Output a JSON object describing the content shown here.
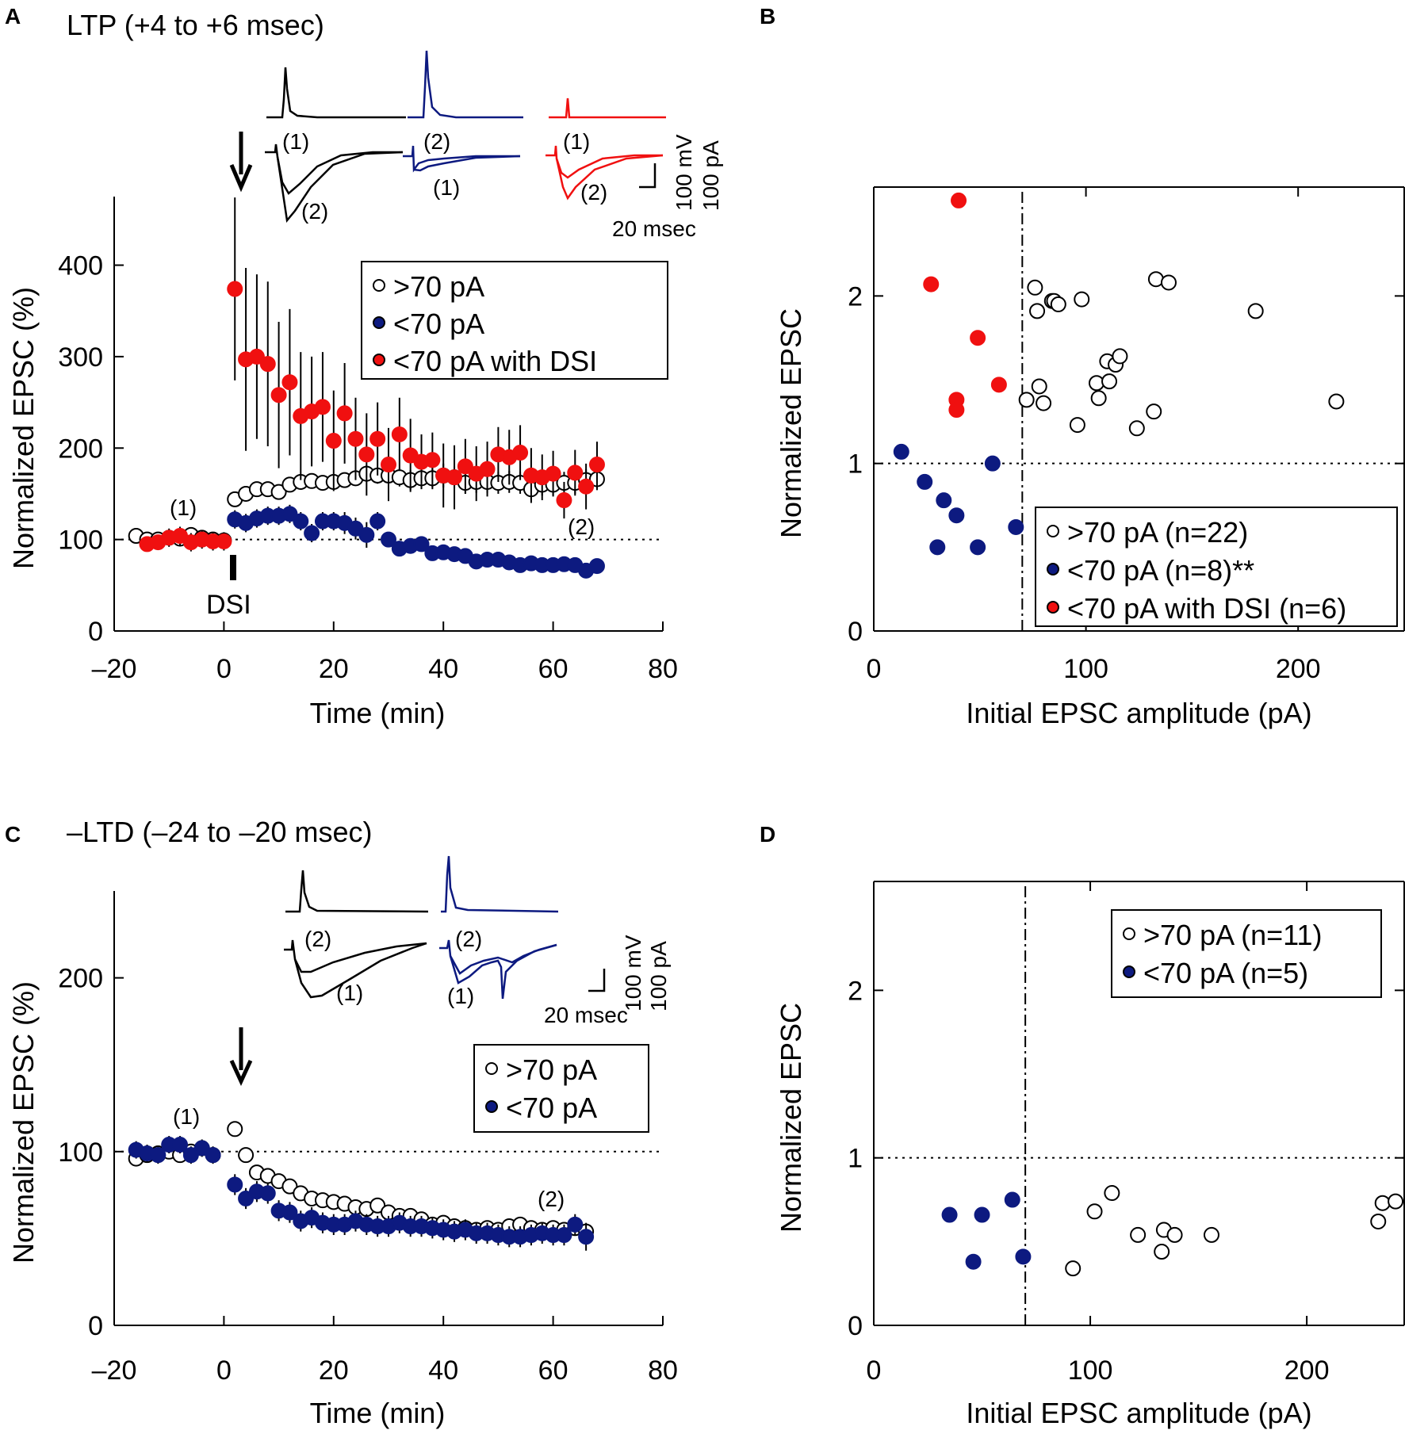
{
  "colors": {
    "black": "#000000",
    "blue": "#0d1a80",
    "red": "#f01010",
    "white": "#ffffff"
  },
  "chart_data": [
    {
      "panel": "A",
      "type": "scatter",
      "title": "LTP (+4 to +6 msec)",
      "xlabel": "Time (min)",
      "ylabel": "Normalized EPSC (%)",
      "xlim": [
        -20,
        80
      ],
      "ylim": [
        0,
        475
      ],
      "xticks": [
        -20,
        0,
        20,
        40,
        60,
        80
      ],
      "xtick_labels": [
        "–20",
        "0",
        "20",
        "40",
        "60",
        "80"
      ],
      "yticks": [
        0,
        100,
        200,
        300,
        400
      ],
      "ytick_labels": [
        "0",
        "100",
        "200",
        "300",
        "400"
      ],
      "reference_line": 100,
      "annotations": {
        "arrow_label": "",
        "pre_label": "(1)",
        "post_label": "(2)",
        "stim_label": "DSI"
      },
      "inset": {
        "scale_mv": "100 mV",
        "scale_pa": "100 pA",
        "scale_time": "20 msec",
        "black_labels": [
          "(1)",
          "(2)"
        ],
        "blue_labels": [
          "(2)",
          "(1)"
        ],
        "red_labels": [
          "(1)",
          "(2)"
        ]
      },
      "legend": ">70 pA|<70 pA|<70 pA with DSI",
      "legend_entries": [
        ">70 pA",
        "<70 pA",
        "<70 pA with DSI"
      ],
      "series": [
        {
          "name": ">70 pA",
          "style": "open",
          "x": [
            -16,
            -14,
            -12,
            -10,
            -8,
            -6,
            -4,
            -2,
            0,
            2,
            4,
            6,
            8,
            10,
            12,
            14,
            16,
            18,
            20,
            22,
            24,
            26,
            28,
            30,
            32,
            34,
            36,
            38,
            40,
            42,
            44,
            46,
            48,
            50,
            52,
            54,
            56,
            58,
            60,
            62,
            64,
            66,
            68
          ],
          "y": [
            104,
            100,
            100,
            102,
            101,
            105,
            102,
            100,
            99,
            144,
            150,
            155,
            155,
            152,
            160,
            163,
            164,
            162,
            163,
            165,
            167,
            172,
            170,
            170,
            168,
            165,
            167,
            167,
            170,
            168,
            162,
            163,
            163,
            162,
            163,
            162,
            155,
            160,
            160,
            162,
            162,
            165,
            166
          ],
          "err": [
            0,
            5,
            5,
            5,
            5,
            4,
            4,
            4,
            4,
            6,
            6,
            6,
            7,
            7,
            7,
            7,
            7,
            7,
            7,
            8,
            8,
            9,
            9,
            10,
            10,
            11,
            11,
            12,
            13,
            12,
            12,
            12,
            12,
            12,
            12,
            12,
            12,
            12,
            12,
            12,
            12,
            12,
            12
          ]
        },
        {
          "name": "<70 pA",
          "style": "blue",
          "x": [
            2,
            4,
            6,
            8,
            10,
            12,
            14,
            16,
            18,
            20,
            22,
            24,
            26,
            28,
            30,
            32,
            34,
            36,
            38,
            40,
            42,
            44,
            46,
            48,
            50,
            52,
            54,
            56,
            58,
            60,
            62,
            64,
            66,
            68
          ],
          "y": [
            122,
            118,
            123,
            126,
            126,
            128,
            120,
            107,
            120,
            120,
            118,
            112,
            105,
            120,
            100,
            90,
            93,
            95,
            85,
            86,
            84,
            82,
            76,
            78,
            78,
            75,
            72,
            74,
            72,
            72,
            73,
            72,
            66,
            71
          ],
          "err": [
            10,
            10,
            10,
            10,
            10,
            10,
            10,
            10,
            10,
            10,
            12,
            12,
            14,
            10,
            8,
            8,
            8,
            8,
            8,
            6,
            6,
            6,
            6,
            6,
            6,
            6,
            5,
            5,
            5,
            5,
            5,
            5,
            5,
            5
          ]
        },
        {
          "name": "<70 pA with DSI",
          "style": "red",
          "x": [
            -14,
            -12,
            -10,
            -8,
            -6,
            -4,
            -2,
            0,
            2,
            4,
            6,
            8,
            10,
            12,
            14,
            16,
            18,
            20,
            22,
            24,
            26,
            28,
            30,
            32,
            34,
            36,
            38,
            40,
            42,
            44,
            46,
            48,
            50,
            52,
            54,
            56,
            58,
            60,
            62,
            64,
            66,
            68
          ],
          "y": [
            95,
            97,
            102,
            104,
            97,
            100,
            98,
            98,
            374,
            297,
            300,
            292,
            258,
            272,
            235,
            240,
            245,
            208,
            238,
            210,
            193,
            210,
            182,
            215,
            192,
            185,
            187,
            170,
            168,
            180,
            172,
            177,
            193,
            190,
            195,
            170,
            168,
            172,
            143,
            173,
            158,
            182
          ],
          "err": [
            8,
            8,
            10,
            10,
            10,
            10,
            10,
            10,
            100,
            100,
            90,
            90,
            80,
            80,
            70,
            60,
            60,
            55,
            55,
            45,
            45,
            40,
            40,
            40,
            40,
            30,
            30,
            35,
            35,
            30,
            30,
            30,
            30,
            30,
            30,
            30,
            25,
            25,
            20,
            25,
            25,
            25
          ]
        }
      ]
    },
    {
      "panel": "B",
      "type": "scatter",
      "xlabel": "Initial EPSC amplitude (pA)",
      "ylabel": "Normalized EPSC",
      "xlim": [
        0,
        250
      ],
      "ylim": [
        0,
        2.65
      ],
      "xticks": [
        0,
        100,
        200
      ],
      "xtick_labels": [
        "0",
        "100",
        "200"
      ],
      "yticks": [
        0,
        1,
        2
      ],
      "ytick_labels": [
        "0",
        "1",
        "2"
      ],
      "threshold_x": 70,
      "reference_line": 1,
      "legend": ">70 pA (n=22)|<70 pA (n=8)**|<70 pA with DSI (n=6)",
      "legend_entries": [
        ">70 pA (n=22)",
        "<70 pA (n=8)**",
        "<70 pA with DSI (n=6)"
      ],
      "series": [
        {
          "name": ">70 pA (n=22)",
          "style": "open",
          "x": [
            72,
            76,
            77,
            78,
            80,
            84,
            85,
            87,
            96,
            98,
            105,
            106,
            110,
            111,
            114,
            116,
            124,
            132,
            133,
            139,
            180,
            218
          ],
          "y": [
            1.38,
            2.05,
            1.91,
            1.46,
            1.36,
            1.97,
            1.97,
            1.95,
            1.23,
            1.98,
            1.48,
            1.39,
            1.61,
            1.49,
            1.59,
            1.64,
            1.21,
            1.31,
            2.1,
            2.08,
            1.91,
            1.37
          ]
        },
        {
          "name": "<70 pA (n=8)**",
          "style": "blue",
          "x": [
            13,
            24,
            30,
            33,
            39,
            49,
            56,
            67
          ],
          "y": [
            1.07,
            0.89,
            0.5,
            0.78,
            0.69,
            0.5,
            1.0,
            0.62
          ]
        },
        {
          "name": "<70 pA with DSI (n=6)",
          "style": "red",
          "x": [
            27,
            39,
            39,
            40,
            49,
            59
          ],
          "y": [
            2.07,
            1.38,
            1.32,
            2.57,
            1.75,
            1.47
          ]
        }
      ]
    },
    {
      "panel": "C",
      "type": "scatter",
      "title": "–LTD (–24 to –20 msec)",
      "xlabel": "Time (min)",
      "ylabel": "Normalized EPSC (%)",
      "xlim": [
        -20,
        80
      ],
      "ylim": [
        0,
        250
      ],
      "xticks": [
        -20,
        0,
        20,
        40,
        60,
        80
      ],
      "xtick_labels": [
        "–20",
        "0",
        "20",
        "40",
        "60",
        "80"
      ],
      "yticks": [
        0,
        100,
        200
      ],
      "ytick_labels": [
        "0",
        "100",
        "200"
      ],
      "reference_line": 100,
      "annotations": {
        "pre_label": "(1)",
        "post_label": "(2)"
      },
      "inset": {
        "scale_mv": "100 mV",
        "scale_pa": "100 pA",
        "scale_time": "20 msec",
        "black_labels": [
          "(2)",
          "(1)"
        ],
        "blue_labels": [
          "(2)",
          "(1)"
        ]
      },
      "legend": ">70 pA|<70 pA",
      "legend_entries": [
        ">70 pA",
        "<70 pA"
      ],
      "series": [
        {
          "name": ">70 pA",
          "style": "open",
          "x": [
            -16,
            -14,
            -12,
            -10,
            -8,
            -6,
            -4,
            -2,
            2,
            4,
            6,
            8,
            10,
            12,
            14,
            16,
            18,
            20,
            22,
            24,
            26,
            28,
            30,
            32,
            34,
            36,
            38,
            40,
            42,
            44,
            46,
            48,
            50,
            52,
            54,
            56,
            58,
            60,
            62,
            64,
            66
          ],
          "y": [
            96,
            98,
            99,
            100,
            98,
            100,
            102,
            98,
            113,
            98,
            88,
            86,
            83,
            80,
            76,
            73,
            72,
            71,
            70,
            68,
            67,
            69,
            65,
            63,
            63,
            61,
            58,
            59,
            57,
            56,
            55,
            56,
            55,
            57,
            58,
            56,
            55,
            56,
            55,
            56,
            54
          ],
          "err": [
            0,
            0,
            0,
            0,
            0,
            0,
            0,
            0,
            0,
            0,
            0,
            0,
            0,
            0,
            0,
            0,
            0,
            0,
            0,
            0,
            0,
            0,
            0,
            0,
            0,
            0,
            0,
            0,
            0,
            0,
            0,
            0,
            0,
            0,
            0,
            0,
            0,
            0,
            0,
            0,
            0
          ]
        },
        {
          "name": "<70 pA",
          "style": "blue",
          "x": [
            -16,
            -14,
            -12,
            -10,
            -8,
            -6,
            -4,
            -2,
            2,
            4,
            6,
            8,
            10,
            12,
            14,
            16,
            18,
            20,
            22,
            24,
            26,
            28,
            30,
            32,
            34,
            36,
            38,
            40,
            42,
            44,
            46,
            48,
            50,
            52,
            54,
            56,
            58,
            60,
            62,
            64,
            66
          ],
          "y": [
            101,
            99,
            98,
            104,
            104,
            98,
            102,
            98,
            81,
            73,
            77,
            76,
            66,
            65,
            60,
            62,
            59,
            58,
            58,
            60,
            58,
            57,
            57,
            59,
            57,
            57,
            56,
            55,
            54,
            55,
            53,
            53,
            52,
            51,
            51,
            52,
            53,
            52,
            52,
            58,
            51
          ],
          "err": [
            5,
            5,
            5,
            5,
            5,
            5,
            5,
            5,
            6,
            6,
            6,
            6,
            6,
            6,
            6,
            6,
            6,
            6,
            6,
            6,
            6,
            6,
            6,
            6,
            6,
            6,
            6,
            6,
            6,
            6,
            6,
            6,
            6,
            6,
            6,
            6,
            6,
            6,
            6,
            6,
            8
          ]
        }
      ]
    },
    {
      "panel": "D",
      "type": "scatter",
      "xlabel": "Initial EPSC amplitude (pA)",
      "ylabel": "Normalized EPSC",
      "xlim": [
        0,
        245
      ],
      "ylim": [
        0,
        2.65
      ],
      "xticks": [
        0,
        100,
        200
      ],
      "xtick_labels": [
        "0",
        "100",
        "200"
      ],
      "yticks": [
        0,
        1,
        2
      ],
      "ytick_labels": [
        "0",
        "1",
        "2"
      ],
      "threshold_x": 70,
      "reference_line": 1,
      "legend": ">70 pA (n=11)|<70 pA (n=5)",
      "legend_entries": [
        ">70 pA (n=11)",
        "<70 pA (n=5)"
      ],
      "series": [
        {
          "name": ">70 pA (n=11)",
          "style": "open",
          "x": [
            92,
            102,
            110,
            122,
            133,
            134,
            139,
            156,
            233,
            235,
            241
          ],
          "y": [
            0.34,
            0.68,
            0.79,
            0.54,
            0.44,
            0.57,
            0.54,
            0.54,
            0.62,
            0.73,
            0.74
          ]
        },
        {
          "name": "<70 pA (n=5)",
          "style": "blue",
          "x": [
            35,
            46,
            50,
            64,
            69
          ],
          "y": [
            0.66,
            0.38,
            0.66,
            0.75,
            0.41
          ]
        }
      ]
    }
  ]
}
